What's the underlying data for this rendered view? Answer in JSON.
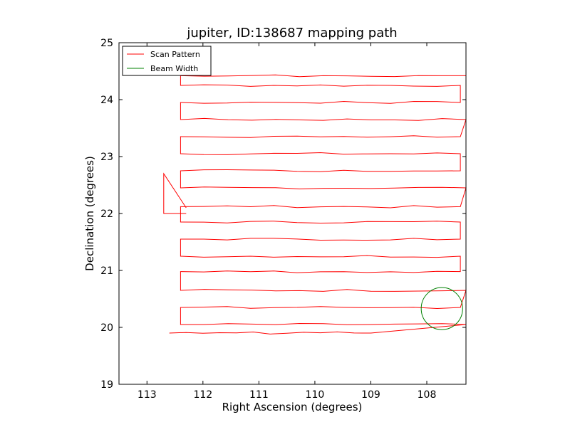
{
  "chart_data": {
    "type": "line",
    "title": "jupiter, ID:138687 mapping path",
    "xlabel": "Right Ascension (degrees)",
    "ylabel": "Declination (degrees)",
    "xlim": [
      113.5,
      107.3
    ],
    "ylim": [
      19,
      25
    ],
    "x_inverted": true,
    "xticks": [
      113,
      112,
      111,
      110,
      109,
      108
    ],
    "yticks": [
      19,
      20,
      21,
      22,
      23,
      24,
      25
    ],
    "grid": false,
    "legend": {
      "placement": "top-left",
      "entries": [
        "Scan Pattern",
        "Beam Width"
      ]
    },
    "colors": {
      "scan": "#ff0000",
      "beam": "#008000"
    },
    "series": [
      {
        "name": "Scan Pattern",
        "kind": "raster-scan",
        "rows": [
          {
            "dec": 19.9,
            "ra_start": 112.6,
            "ra_end": 109.0
          },
          {
            "dec": 20.05,
            "ra_start": 112.4,
            "ra_end": 107.3
          },
          {
            "dec": 20.35,
            "ra_start": 112.4,
            "ra_end": 107.4
          },
          {
            "dec": 20.65,
            "ra_start": 112.4,
            "ra_end": 107.3
          },
          {
            "dec": 20.98,
            "ra_start": 112.4,
            "ra_end": 107.4
          },
          {
            "dec": 21.25,
            "ra_start": 112.4,
            "ra_end": 107.4
          },
          {
            "dec": 21.55,
            "ra_start": 112.4,
            "ra_end": 107.4
          },
          {
            "dec": 21.85,
            "ra_start": 112.4,
            "ra_end": 107.4
          },
          {
            "dec": 22.12,
            "ra_start": 112.4,
            "ra_end": 107.4
          },
          {
            "dec": 22.45,
            "ra_start": 112.4,
            "ra_end": 107.3
          },
          {
            "dec": 22.75,
            "ra_start": 112.4,
            "ra_end": 107.4
          },
          {
            "dec": 23.05,
            "ra_start": 112.4,
            "ra_end": 107.4
          },
          {
            "dec": 23.35,
            "ra_start": 112.4,
            "ra_end": 107.4
          },
          {
            "dec": 23.65,
            "ra_start": 112.4,
            "ra_end": 107.3
          },
          {
            "dec": 23.95,
            "ra_start": 112.4,
            "ra_end": 107.4
          },
          {
            "dec": 24.25,
            "ra_start": 112.4,
            "ra_end": 107.4
          },
          {
            "dec": 24.42,
            "ra_start": 112.4,
            "ra_end": 107.3
          }
        ],
        "excursion": [
          [
            112.3,
            22.1
          ],
          [
            112.7,
            22.7
          ],
          [
            112.7,
            22.0
          ],
          [
            112.3,
            22.0
          ]
        ]
      },
      {
        "name": "Beam Width",
        "kind": "circle",
        "center": [
          107.73,
          20.33
        ],
        "radius_deg": 0.37
      }
    ]
  }
}
